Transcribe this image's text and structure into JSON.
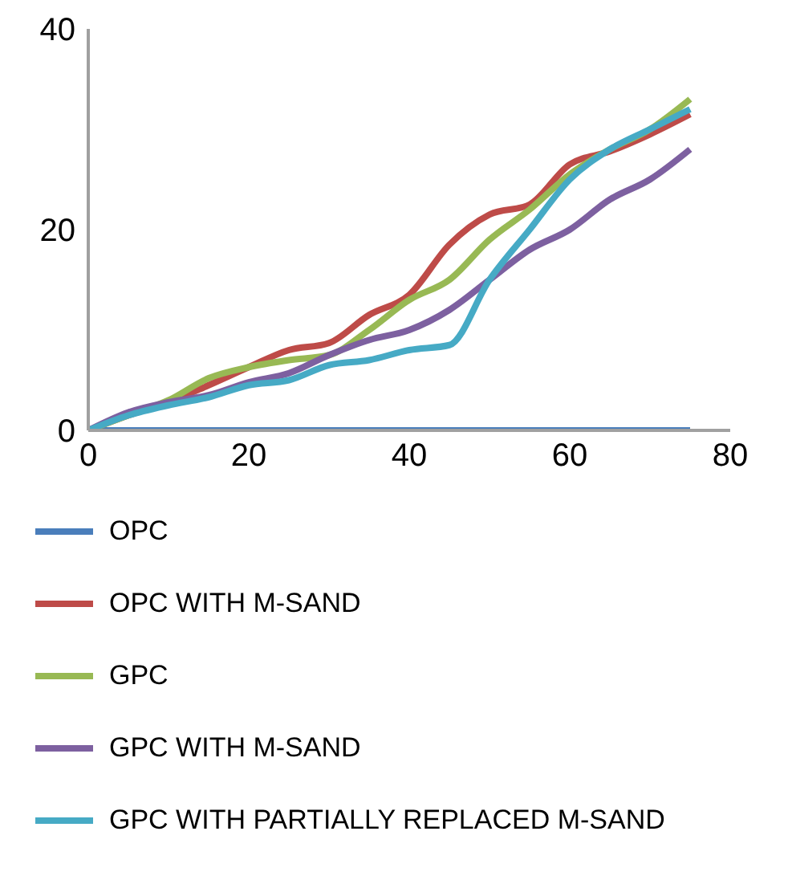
{
  "chart_data": {
    "type": "line",
    "x": [
      0,
      5,
      10,
      15,
      20,
      25,
      30,
      35,
      40,
      45,
      50,
      55,
      60,
      65,
      70,
      75
    ],
    "xlim": [
      0,
      80
    ],
    "xticks": [
      0,
      20,
      40,
      60,
      80
    ],
    "ylim": [
      0,
      40
    ],
    "yticks": [
      0,
      20,
      40
    ],
    "grid": false,
    "legend": "bottom",
    "marker": "none",
    "line_style": "solid",
    "series": [
      {
        "name": "OPC",
        "color": "#4a7ebb",
        "values": [
          0,
          0,
          0,
          0,
          0,
          0,
          0,
          0,
          0,
          0,
          0,
          0,
          0,
          0,
          0,
          0
        ]
      },
      {
        "name": "OPC WITH M-SAND",
        "color": "#be4b48",
        "values": [
          0,
          1.5,
          2.8,
          4.5,
          6.3,
          8,
          8.7,
          11.5,
          13.5,
          18.5,
          21.5,
          22.5,
          26.5,
          27.8,
          29.5,
          31.5
        ]
      },
      {
        "name": "GPC",
        "color": "#98b954",
        "values": [
          0,
          1.5,
          3,
          5.2,
          6.3,
          7,
          7.5,
          10,
          13,
          15,
          19,
          22,
          25.5,
          28,
          30,
          33
        ]
      },
      {
        "name": "GPC WITH M-SAND",
        "color": "#7d60a0",
        "values": [
          0,
          1.8,
          2.8,
          3.5,
          4.8,
          5.7,
          7.5,
          9,
          10,
          12,
          15,
          18,
          20,
          23,
          25,
          28
        ]
      },
      {
        "name": "GPC WITH PARTIALLY REPLACED M-SAND",
        "color": "#46aac5",
        "values": [
          0,
          1.5,
          2.5,
          3.3,
          4.5,
          5,
          6.5,
          7,
          8,
          8.5,
          15,
          20,
          25,
          28,
          30,
          32
        ]
      }
    ]
  }
}
